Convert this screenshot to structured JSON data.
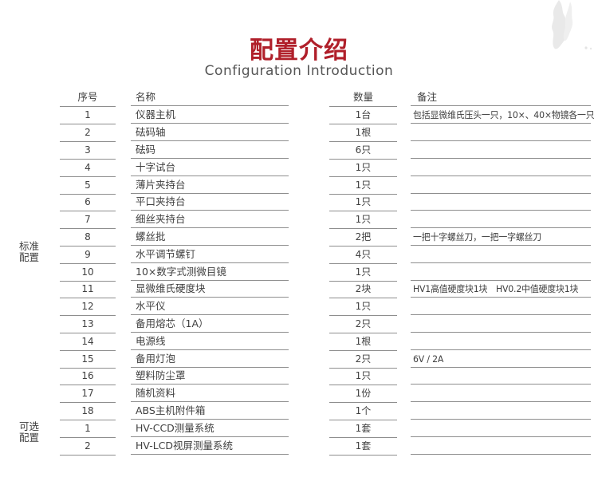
{
  "header": {
    "title": "配置介绍",
    "subtitle": "Configuration Introduction"
  },
  "colors": {
    "accent_red": "#b01f2a",
    "body_text": "#404040",
    "table_line": "#8e8e8e",
    "subtitle_gray": "#555555"
  },
  "table": {
    "columns": {
      "no": "序号",
      "name": "名称",
      "qty": "数量",
      "remark": "备注"
    },
    "groups": {
      "standard": "标准\n配置",
      "optional": "可选\n配置"
    },
    "rows": [
      {
        "no": "1",
        "name": "仪器主机",
        "qty": "1台",
        "remark": "包括显微维氏压头一只，10×、40×物镜各一只",
        "group": "standard"
      },
      {
        "no": "2",
        "name": "砝码轴",
        "qty": "1根",
        "remark": "",
        "group": "standard"
      },
      {
        "no": "3",
        "name": "砝码",
        "qty": "6只",
        "remark": "",
        "group": "standard"
      },
      {
        "no": "4",
        "name": "十字试台",
        "qty": "1只",
        "remark": "",
        "group": "standard"
      },
      {
        "no": "5",
        "name": "薄片夹持台",
        "qty": "1只",
        "remark": "",
        "group": "standard"
      },
      {
        "no": "6",
        "name": "平口夹持台",
        "qty": "1只",
        "remark": "",
        "group": "standard"
      },
      {
        "no": "7",
        "name": "细丝夹持台",
        "qty": "1只",
        "remark": "",
        "group": "standard"
      },
      {
        "no": "8",
        "name": "螺丝批",
        "qty": "2把",
        "remark": "一把十字螺丝刀，一把一字螺丝刀",
        "group": "standard"
      },
      {
        "no": "9",
        "name": "水平调节螺钉",
        "qty": "4只",
        "remark": "",
        "group": "standard"
      },
      {
        "no": "10",
        "name": "10×数字式测微目镜",
        "qty": "1只",
        "remark": "",
        "group": "standard"
      },
      {
        "no": "11",
        "name": "显微维氏硬度块",
        "qty": "2块",
        "remark": "HV1高值硬度块1块　HV0.2中值硬度块1块",
        "group": "standard"
      },
      {
        "no": "12",
        "name": "水平仪",
        "qty": "1只",
        "remark": "",
        "group": "standard"
      },
      {
        "no": "13",
        "name": "备用熔芯（1A）",
        "qty": "2只",
        "remark": "",
        "group": "standard"
      },
      {
        "no": "14",
        "name": "电源线",
        "qty": "1根",
        "remark": "",
        "group": "standard"
      },
      {
        "no": "15",
        "name": "备用灯泡",
        "qty": "2只",
        "remark": "6V / 2A",
        "group": "standard"
      },
      {
        "no": "16",
        "name": "塑料防尘罩",
        "qty": "1只",
        "remark": "",
        "group": "standard"
      },
      {
        "no": "17",
        "name": "随机资料",
        "qty": "1份",
        "remark": "",
        "group": "standard"
      },
      {
        "no": "18",
        "name": "ABS主机附件箱",
        "qty": "1个",
        "remark": "",
        "group": "standard"
      },
      {
        "no": "1",
        "name": "HV-CCD测量系统",
        "qty": "1套",
        "remark": "",
        "group": "optional"
      },
      {
        "no": "2",
        "name": "HV-LCD视屏测量系统",
        "qty": "1套",
        "remark": "",
        "group": "optional"
      }
    ]
  }
}
